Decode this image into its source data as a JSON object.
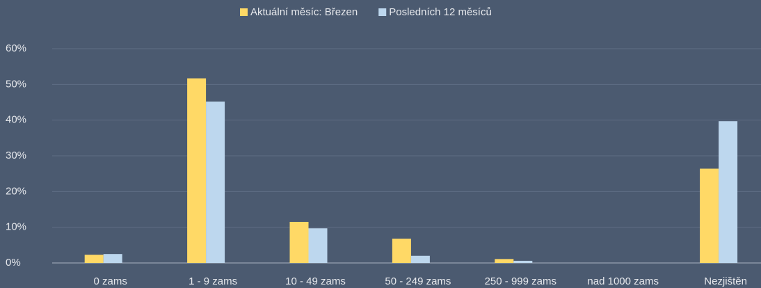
{
  "chart_data": {
    "type": "bar",
    "categories": [
      "0 zams",
      "1 - 9 zams",
      "10 - 49 zams",
      "50 - 249 zams",
      "250 - 999 zams",
      "nad 1000 zams",
      "Nezjištěn"
    ],
    "series": [
      {
        "name": "Aktuální měsíc: Březen",
        "color": "#ffd966",
        "values": [
          2.3,
          51.7,
          11.5,
          6.8,
          1.1,
          0,
          26.4
        ]
      },
      {
        "name": "Posledních 12 měsíců",
        "color": "#bdd7ee",
        "values": [
          2.5,
          45.2,
          9.7,
          2.0,
          0.6,
          0,
          39.7
        ]
      }
    ],
    "ylim": [
      0,
      60
    ],
    "yticks": [
      {
        "value": 0,
        "label": "0%"
      },
      {
        "value": 10,
        "label": "10%"
      },
      {
        "value": 20,
        "label": "20%"
      },
      {
        "value": 30,
        "label": "30%"
      },
      {
        "value": 40,
        "label": "40%"
      },
      {
        "value": 50,
        "label": "50%"
      },
      {
        "value": 60,
        "label": "60%"
      }
    ],
    "grid": true,
    "legend": "top"
  }
}
